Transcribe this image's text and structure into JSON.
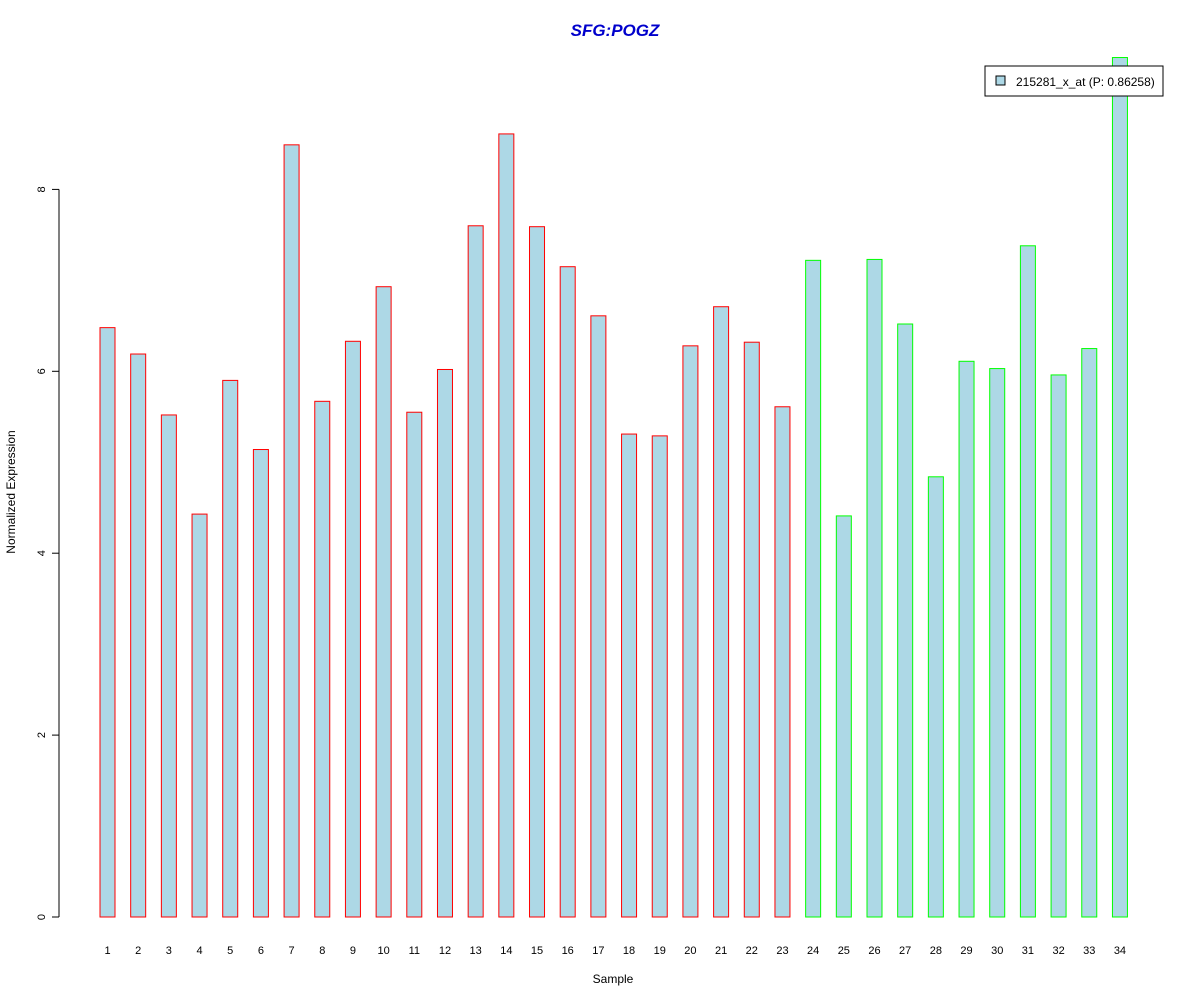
{
  "chart_data": {
    "type": "bar",
    "title": "SFG:POGZ",
    "xlabel": "Sample",
    "ylabel": "Normalized Expression",
    "categories": [
      "1",
      "2",
      "3",
      "4",
      "5",
      "6",
      "7",
      "8",
      "9",
      "10",
      "11",
      "12",
      "13",
      "14",
      "15",
      "16",
      "17",
      "18",
      "19",
      "20",
      "21",
      "22",
      "23",
      "24",
      "25",
      "26",
      "27",
      "28",
      "29",
      "30",
      "31",
      "32",
      "33",
      "34"
    ],
    "series": [
      {
        "name": "215281_x_at (P: 0.86258)",
        "values": [
          6.48,
          6.19,
          5.52,
          4.43,
          5.9,
          5.14,
          8.49,
          5.67,
          6.33,
          6.93,
          5.55,
          6.02,
          7.6,
          8.61,
          7.59,
          7.15,
          6.61,
          5.31,
          5.29,
          6.28,
          6.71,
          6.32,
          5.61,
          7.22,
          4.41,
          7.23,
          6.52,
          4.84,
          6.11,
          6.03,
          7.38,
          5.96,
          6.25,
          9.45
        ]
      }
    ],
    "groups": [
      "red",
      "red",
      "red",
      "red",
      "red",
      "red",
      "red",
      "red",
      "red",
      "red",
      "red",
      "red",
      "red",
      "red",
      "red",
      "red",
      "red",
      "red",
      "red",
      "red",
      "red",
      "red",
      "red",
      "green",
      "green",
      "green",
      "green",
      "green",
      "green",
      "green",
      "green",
      "green",
      "green",
      "green"
    ],
    "yticks": [
      0,
      2,
      4,
      6,
      8
    ],
    "ylim": [
      0,
      9.45
    ],
    "legend": {
      "label": "215281_x_at (P: 0.86258)",
      "position": "top-right"
    },
    "grid": false
  },
  "colors": {
    "title": "#0000CC",
    "bar_fill": "#ADD8E6",
    "border_red": "#FF0000",
    "border_green": "#00FF00",
    "axis": "#000000"
  }
}
